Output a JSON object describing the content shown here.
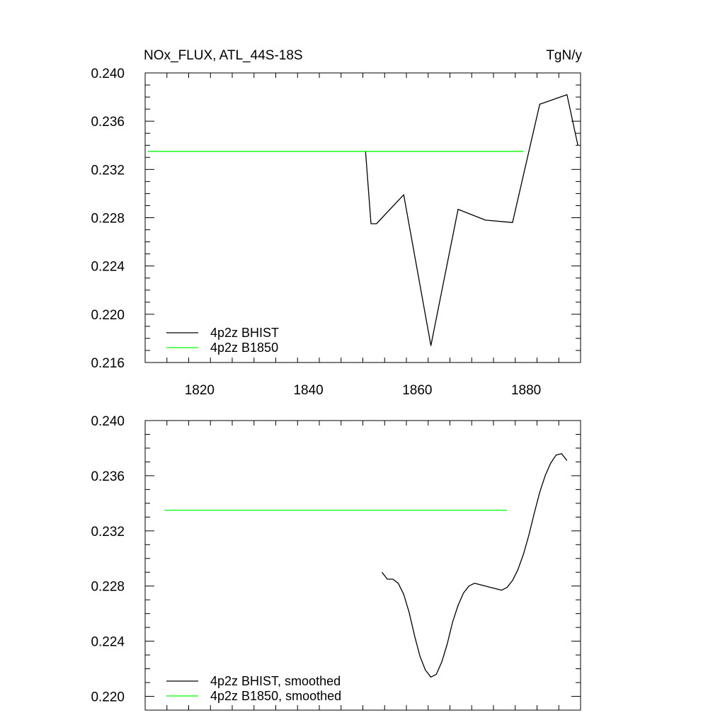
{
  "figure": {
    "title": "NOx_FLUX, ATL_44S-18S",
    "units": "TgN/y"
  },
  "colors": {
    "bhist": "#000000",
    "b1850": "#00ff00"
  },
  "chart_data": [
    {
      "type": "line",
      "title": "NOx_FLUX, ATL_44S-18S",
      "units_label": "TgN/y",
      "xlabel": "",
      "ylabel": "",
      "xlim": [
        1810,
        1890
      ],
      "ylim": [
        0.216,
        0.24
      ],
      "x_ticks": [
        1820,
        1840,
        1860,
        1880
      ],
      "x_tick_labels": [
        "1820",
        "1840",
        "1860",
        "1880"
      ],
      "y_ticks": [
        0.216,
        0.22,
        0.224,
        0.228,
        0.232,
        0.236,
        0.24
      ],
      "y_tick_labels": [
        "0.216",
        "0.220",
        "0.224",
        "0.228",
        "0.232",
        "0.236",
        "0.240"
      ],
      "legend_position": "bottom-left",
      "series": [
        {
          "name": "4p2z BHIST",
          "color": "#000000",
          "x": [
            1850.5,
            1851.5,
            1852.5,
            1857.5,
            1862.5,
            1867.5,
            1872.5,
            1877.5,
            1882.5,
            1887.5,
            1889.5
          ],
          "y": [
            0.2335,
            0.2275,
            0.2275,
            0.2299,
            0.2174,
            0.2287,
            0.2278,
            0.2276,
            0.2374,
            0.2382,
            0.234
          ]
        },
        {
          "name": "4p2z B1850",
          "color": "#00ff00",
          "x": [
            1810.5,
            1879.5
          ],
          "y": [
            0.2335,
            0.2335
          ]
        }
      ]
    },
    {
      "type": "line",
      "title": "",
      "xlabel": "",
      "ylabel": "",
      "xlim": [
        1810,
        1890
      ],
      "ylim": [
        0.219,
        0.24
      ],
      "x_ticks": [
        1820,
        1840,
        1860,
        1880
      ],
      "x_tick_labels": [],
      "y_ticks": [
        0.22,
        0.224,
        0.228,
        0.232,
        0.236,
        0.24
      ],
      "y_tick_labels": [
        "0.220",
        "0.224",
        "0.228",
        "0.232",
        "0.236",
        "0.240"
      ],
      "legend_position": "bottom-left",
      "series": [
        {
          "name": "4p2z BHIST, smoothed",
          "color": "#000000",
          "x": [
            1853.5,
            1854.5,
            1855.5,
            1856.5,
            1857.5,
            1858.5,
            1859.5,
            1860.5,
            1861.5,
            1862.5,
            1863.5,
            1864.5,
            1865.5,
            1866.5,
            1867.5,
            1868.5,
            1869.5,
            1870.5,
            1871.5,
            1872.5,
            1873.5,
            1874.5,
            1875.5,
            1876.5,
            1877.5,
            1878.5,
            1879.5,
            1880.5,
            1881.5,
            1882.5,
            1883.5,
            1884.5,
            1885.5,
            1886.5,
            1887.5
          ],
          "y": [
            0.229,
            0.2285,
            0.2285,
            0.2282,
            0.2274,
            0.2261,
            0.2244,
            0.2229,
            0.2219,
            0.2214,
            0.2216,
            0.2225,
            0.2238,
            0.2254,
            0.2266,
            0.2275,
            0.228,
            0.2282,
            0.2281,
            0.228,
            0.2279,
            0.2278,
            0.2277,
            0.2279,
            0.2284,
            0.2292,
            0.2303,
            0.2317,
            0.2333,
            0.2348,
            0.236,
            0.2369,
            0.2375,
            0.2376,
            0.2371
          ]
        },
        {
          "name": "4p2z B1850, smoothed",
          "color": "#00ff00",
          "x": [
            1813.5,
            1876.5
          ],
          "y": [
            0.2335,
            0.2335
          ]
        }
      ]
    }
  ]
}
